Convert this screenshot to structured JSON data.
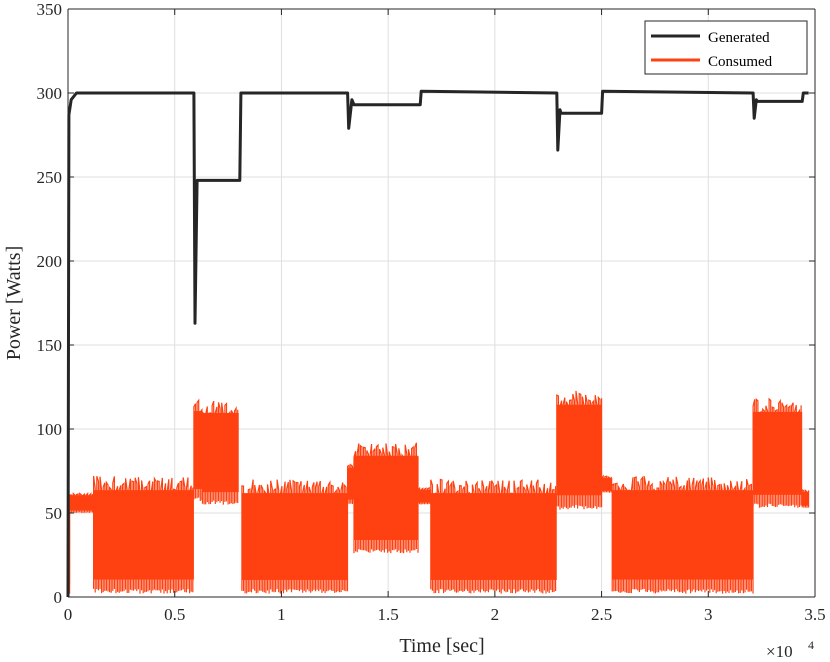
{
  "chart_data": {
    "type": "line",
    "xlabel": "Time [sec]",
    "ylabel": "Power [Watts]",
    "xlim": [
      0,
      35000
    ],
    "ylim": [
      0,
      350
    ],
    "x_ticks": [
      0,
      5000,
      10000,
      15000,
      20000,
      25000,
      30000,
      35000
    ],
    "x_tick_labels": [
      "0",
      "0.5",
      "1",
      "1.5",
      "2",
      "2.5",
      "3",
      "3.5"
    ],
    "y_ticks": [
      0,
      50,
      100,
      150,
      200,
      250,
      300,
      350
    ],
    "y_tick_labels": [
      "0",
      "50",
      "100",
      "150",
      "200",
      "250",
      "300",
      "350"
    ],
    "x_exponent": {
      "base": "×10",
      "power": "4"
    },
    "grid": true,
    "legend_position": "top-right",
    "colors": {
      "Generated": "#262626",
      "Consumed": "#ff4010"
    },
    "series": [
      {
        "name": "Generated",
        "type": "line",
        "points": [
          [
            0,
            0
          ],
          [
            40,
            287
          ],
          [
            150,
            296
          ],
          [
            400,
            300
          ],
          [
            5900,
            300
          ],
          [
            5950,
            163
          ],
          [
            6050,
            248
          ],
          [
            8050,
            248
          ],
          [
            8100,
            300
          ],
          [
            13100,
            300
          ],
          [
            13150,
            279
          ],
          [
            13300,
            296
          ],
          [
            13400,
            293
          ],
          [
            16500,
            293
          ],
          [
            16550,
            301
          ],
          [
            22900,
            300
          ],
          [
            22950,
            266
          ],
          [
            23050,
            290
          ],
          [
            23100,
            288
          ],
          [
            25000,
            288
          ],
          [
            25050,
            301
          ],
          [
            32100,
            300
          ],
          [
            32150,
            285
          ],
          [
            32250,
            296
          ],
          [
            32300,
            295
          ],
          [
            34400,
            295
          ],
          [
            34450,
            300
          ],
          [
            34700,
            300
          ]
        ]
      },
      {
        "name": "Consumed",
        "type": "band",
        "segments": [
          {
            "x0": 0,
            "x1": 100,
            "low": 0,
            "high": 62
          },
          {
            "x0": 100,
            "x1": 1200,
            "low": 50,
            "high": 62
          },
          {
            "x0": 1200,
            "x1": 5900,
            "low": 2,
            "high": 72
          },
          {
            "x0": 5900,
            "x1": 6300,
            "low": 57,
            "high": 118
          },
          {
            "x0": 6300,
            "x1": 8000,
            "low": 55,
            "high": 117
          },
          {
            "x0": 8150,
            "x1": 13100,
            "low": 2,
            "high": 70
          },
          {
            "x0": 13100,
            "x1": 13400,
            "low": 55,
            "high": 80
          },
          {
            "x0": 13400,
            "x1": 16400,
            "low": 26,
            "high": 92
          },
          {
            "x0": 16400,
            "x1": 17000,
            "low": 55,
            "high": 65
          },
          {
            "x0": 17000,
            "x1": 22900,
            "low": 2,
            "high": 70
          },
          {
            "x0": 22900,
            "x1": 25000,
            "low": 52,
            "high": 123
          },
          {
            "x0": 25000,
            "x1": 25500,
            "low": 62,
            "high": 72
          },
          {
            "x0": 25500,
            "x1": 32100,
            "low": 2,
            "high": 72
          },
          {
            "x0": 32100,
            "x1": 34400,
            "low": 53,
            "high": 118
          },
          {
            "x0": 34400,
            "x1": 34700,
            "low": 53,
            "high": 64
          }
        ]
      }
    ]
  }
}
